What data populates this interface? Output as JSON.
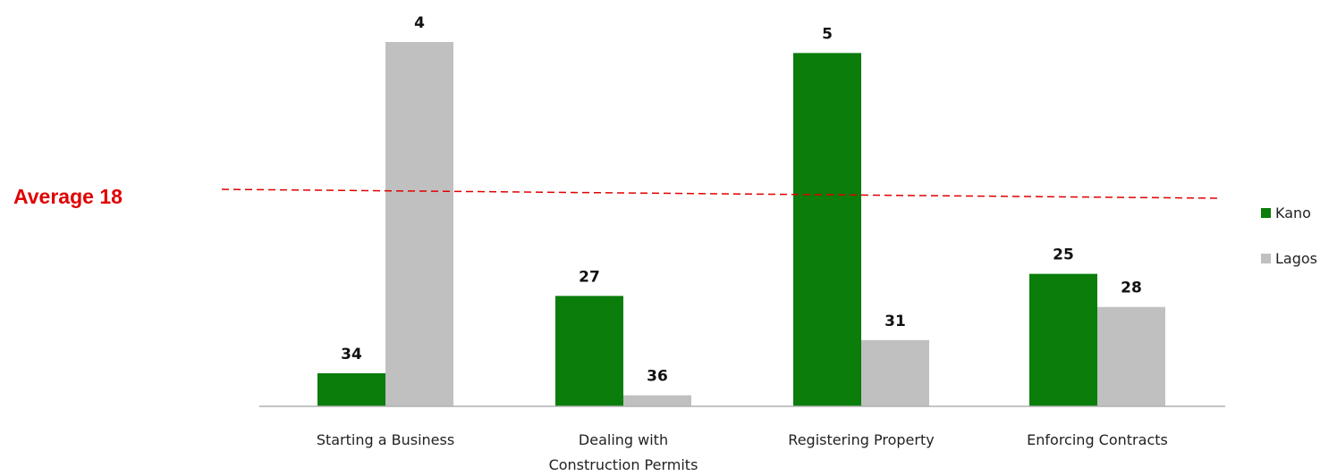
{
  "chart_data": {
    "type": "bar",
    "note_values": "Bars show rank positions (lower rank = better). Bar height is inverted: higher bars correspond to better (smaller) ranks.",
    "categories": [
      [
        "Starting a Business"
      ],
      [
        "Dealing with",
        "Construction Permits"
      ],
      [
        "Registering Property"
      ],
      [
        "Enforcing Contracts"
      ]
    ],
    "series": [
      {
        "name": "Kano",
        "color": "#0a7d0a",
        "values": [
          34,
          27,
          5,
          25
        ]
      },
      {
        "name": "Lagos",
        "color": "#c0c0c0",
        "values": [
          4,
          36,
          31,
          28
        ]
      }
    ],
    "max_rank": 37,
    "reference_line": {
      "label": "Average 18",
      "value": 18,
      "color": "#e00000"
    },
    "legend_placement": "right"
  }
}
